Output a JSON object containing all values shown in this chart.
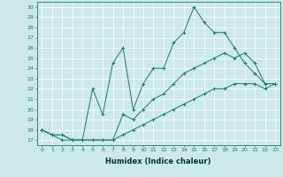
{
  "xlabel": "Humidex (Indice chaleur)",
  "ylabel": "",
  "background_color": "#cce8e8",
  "line_color": "#1a7a6e",
  "xlim": [
    -0.5,
    23.5
  ],
  "ylim": [
    16.5,
    30.5
  ],
  "yticks": [
    17,
    18,
    19,
    20,
    21,
    22,
    23,
    24,
    25,
    26,
    27,
    28,
    29,
    30
  ],
  "xticks": [
    0,
    1,
    2,
    3,
    4,
    5,
    6,
    7,
    8,
    9,
    10,
    11,
    12,
    13,
    14,
    15,
    16,
    17,
    18,
    19,
    20,
    21,
    22,
    23
  ],
  "series": [
    [
      18.0,
      17.5,
      17.0,
      17.0,
      17.0,
      22.0,
      19.5,
      24.5,
      26.0,
      20.0,
      22.5,
      24.0,
      24.0,
      26.5,
      27.5,
      30.0,
      28.5,
      27.5,
      27.5,
      26.0,
      24.5,
      23.5,
      22.5,
      22.5
    ],
    [
      18.0,
      17.5,
      17.5,
      17.0,
      17.0,
      17.0,
      17.0,
      17.0,
      19.5,
      19.0,
      20.0,
      21.0,
      21.5,
      22.5,
      23.5,
      24.0,
      24.5,
      25.0,
      25.5,
      25.0,
      25.5,
      24.5,
      22.5,
      22.5
    ],
    [
      18.0,
      17.5,
      17.5,
      17.0,
      17.0,
      17.0,
      17.0,
      17.0,
      17.5,
      18.0,
      18.5,
      19.0,
      19.5,
      20.0,
      20.5,
      21.0,
      21.5,
      22.0,
      22.0,
      22.5,
      22.5,
      22.5,
      22.0,
      22.5
    ]
  ]
}
